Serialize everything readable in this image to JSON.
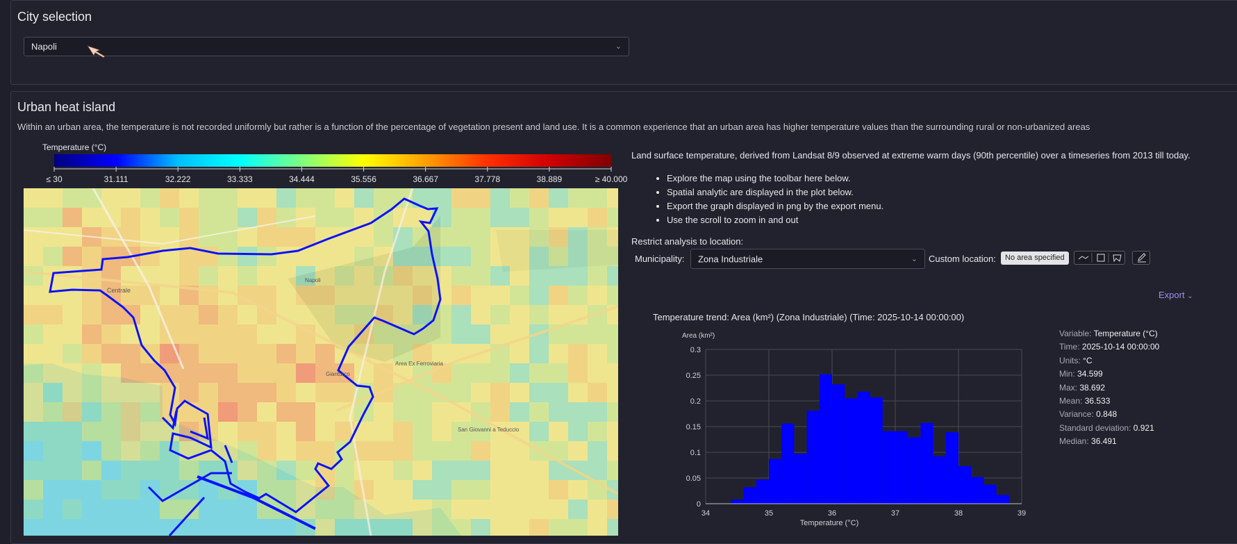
{
  "city_panel": {
    "title": "City selection",
    "city_select": {
      "value": "Napoli"
    }
  },
  "uhi_panel": {
    "title": "Urban heat island",
    "description": "Within an urban area, the temperature is not recorded uniformly but rather is a function of the percentage of vegetation present and land use. It is a common experience that an urban area has higher temperature values than the surrounding rural or non-urbanized areas",
    "legend": {
      "title": "Temperature (°C)",
      "ticks": [
        "≤ 30",
        "31.111",
        "32.222",
        "33.333",
        "34.444",
        "35.556",
        "36.667",
        "37.778",
        "38.889",
        "≥ 40.000"
      ],
      "colors": [
        "#00007f",
        "#0000ff",
        "#00bfff",
        "#00ffff",
        "#7fff7f",
        "#ffff00",
        "#ff9f00",
        "#ff3000",
        "#cf0000",
        "#7f0000"
      ]
    },
    "info_text": "Land surface temperature, derived from Landsat 8/9 observed at extreme warm days (90th percentile) over a timeseries from 2013 till today.",
    "bullets": [
      "Explore the map using the toolbar here below.",
      "Spatial analytic are displayed in the plot below.",
      "Export the graph displayed in png by the export menu.",
      "Use the scroll to zoom in and out"
    ],
    "restrict_label": "Restrict analysis to location:",
    "municipality_label": "Municipality:",
    "municipality_value": "Zona Industriale",
    "custom_location_label": "Custom location:",
    "no_area_badge": "No area specified",
    "export_label": "Export",
    "map_labels": [
      "Napoli",
      "Centrale",
      "Area Ex Ferroviaria",
      "Gianturco",
      "San Giovanni a Teduccio"
    ]
  },
  "stats": [
    {
      "key": "Variable",
      "value": "Temperature (°C)"
    },
    {
      "key": "Time",
      "value": "2025-10-14 00:00:00"
    },
    {
      "key": "Units",
      "value": "°C"
    },
    {
      "key": "Min",
      "value": "34.599"
    },
    {
      "key": "Max",
      "value": "38.692"
    },
    {
      "key": "Mean",
      "value": "36.533"
    },
    {
      "key": "Variance",
      "value": "0.848"
    },
    {
      "key": "Standard deviation",
      "value": "0.921"
    },
    {
      "key": "Median",
      "value": "36.491"
    }
  ],
  "chart_data": {
    "type": "bar",
    "title": "Temperature trend: Area (km²) (Zona Industriale) (Time: 2025-10-14 00:00:00)",
    "xlabel": "Temperature (°C)",
    "ylabel": "Area (km²)",
    "xlim": [
      34,
      39
    ],
    "ylim": [
      0,
      0.3
    ],
    "xticks": [
      34,
      35,
      36,
      37,
      38,
      39
    ],
    "yticks": [
      0,
      0.05,
      0.1,
      0.15,
      0.2,
      0.25,
      0.3
    ],
    "bin_width": 0.2,
    "color": "#0000ff",
    "grid": true,
    "bins": [
      {
        "x": 34.4,
        "y": 0.008
      },
      {
        "x": 34.6,
        "y": 0.032
      },
      {
        "x": 34.8,
        "y": 0.047
      },
      {
        "x": 35.0,
        "y": 0.087
      },
      {
        "x": 35.2,
        "y": 0.156
      },
      {
        "x": 35.4,
        "y": 0.097
      },
      {
        "x": 35.6,
        "y": 0.181
      },
      {
        "x": 35.8,
        "y": 0.252
      },
      {
        "x": 36.0,
        "y": 0.232
      },
      {
        "x": 36.2,
        "y": 0.205
      },
      {
        "x": 36.4,
        "y": 0.218
      },
      {
        "x": 36.6,
        "y": 0.207
      },
      {
        "x": 36.8,
        "y": 0.141
      },
      {
        "x": 37.0,
        "y": 0.141
      },
      {
        "x": 37.2,
        "y": 0.129
      },
      {
        "x": 37.4,
        "y": 0.157
      },
      {
        "x": 37.6,
        "y": 0.092
      },
      {
        "x": 37.8,
        "y": 0.139
      },
      {
        "x": 38.0,
        "y": 0.073
      },
      {
        "x": 38.2,
        "y": 0.052
      },
      {
        "x": 38.4,
        "y": 0.037
      },
      {
        "x": 38.6,
        "y": 0.017
      }
    ]
  }
}
